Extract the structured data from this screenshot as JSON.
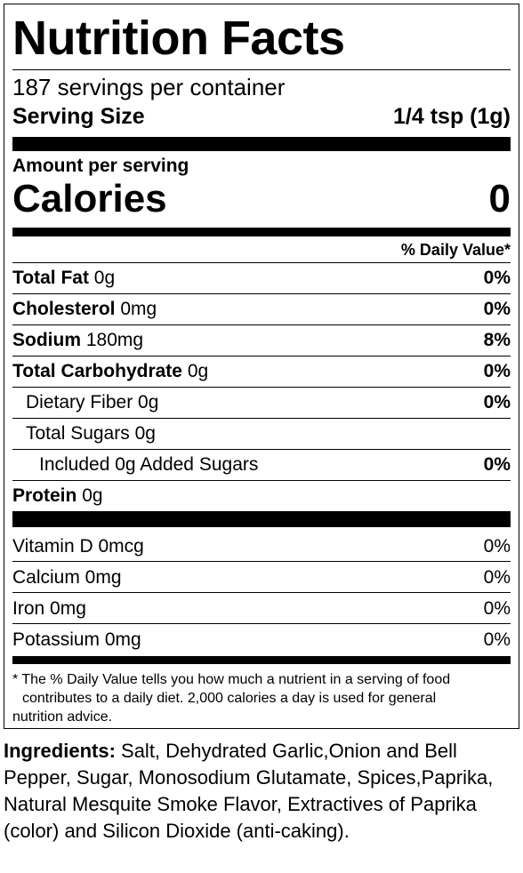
{
  "label": {
    "title": "Nutrition Facts",
    "servings_per_container": "187 servings per container",
    "serving_size_label": "Serving Size",
    "serving_size_value": "1/4 tsp (1g)",
    "amount_per_serving": "Amount per serving",
    "calories_label": "Calories",
    "calories_value": "0",
    "daily_value_header": "% Daily Value*",
    "nutrients": [
      {
        "name": "Total Fat",
        "amount": "0g",
        "dv": "0%"
      },
      {
        "name": "Cholesterol",
        "amount": "0mg",
        "dv": "0%"
      },
      {
        "name": "Sodium",
        "amount": "180mg",
        "dv": "8%"
      },
      {
        "name": "Total Carbohydrate",
        "amount": "0g",
        "dv": "0%"
      },
      {
        "name": "Dietary Fiber 0g",
        "dv": "0%"
      },
      {
        "name": "Total Sugars 0g",
        "dv": ""
      },
      {
        "name": "Included 0g Added Sugars",
        "dv": "0%"
      },
      {
        "name": "Protein",
        "amount": "0g",
        "dv": ""
      }
    ],
    "vitamins": [
      {
        "name": "Vitamin D 0mcg",
        "dv": "0%"
      },
      {
        "name": "Calcium 0mg",
        "dv": "0%"
      },
      {
        "name": "Iron 0mg",
        "dv": "0%"
      },
      {
        "name": "Potassium 0mg",
        "dv": "0%"
      }
    ],
    "footnote_lines": [
      "* The % Daily Value tells you how much a nutrient in a serving of food",
      "contributes to a daily diet. 2,000 calories a day is used for general",
      "nutrition advice."
    ]
  },
  "ingredients": {
    "heading": "Ingredients:",
    "text": " Salt, Dehydrated Garlic,Onion and Bell Pepper, Sugar, Monosodium Glutamate, Spices,Paprika, Natural Mesquite Smoke Flavor, Extractives of Paprika (color) and Silicon Dioxide (anti-caking)."
  }
}
